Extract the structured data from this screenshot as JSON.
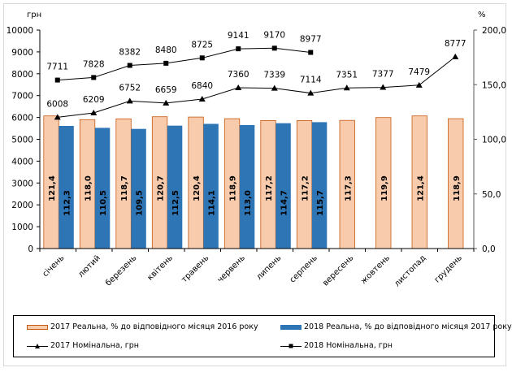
{
  "chart_data": {
    "type": "bar",
    "title": "",
    "left_axis": {
      "label": "грн",
      "range": [
        0,
        10000
      ],
      "ticks": [
        "0",
        "1000",
        "2000",
        "3000",
        "4000",
        "5000",
        "6000",
        "7000",
        "8000",
        "9000",
        "10000"
      ],
      "tick_values": [
        0,
        1000,
        2000,
        3000,
        4000,
        5000,
        6000,
        7000,
        8000,
        9000,
        10000
      ]
    },
    "right_axis": {
      "label": "%",
      "range": [
        0,
        200
      ],
      "ticks": [
        "0,0",
        "50,0",
        "100,0",
        "150,0",
        "200,0"
      ],
      "tick_values": [
        0,
        50,
        100,
        150,
        200
      ]
    },
    "categories": [
      "січень",
      "лютий",
      "березень",
      "квітень",
      "травень",
      "червень",
      "липень",
      "серпень",
      "вересень",
      "жовтень",
      "листопад",
      "грудень"
    ],
    "series": [
      {
        "name": "2017 Реальна, % до відповідного місяця 2016 року",
        "type": "bar",
        "axis": "right",
        "color": "#f8cbad",
        "border": "#c55a11",
        "values": [
          121.4,
          118.0,
          118.7,
          120.7,
          120.4,
          118.9,
          117.2,
          117.2,
          117.3,
          119.9,
          121.4,
          118.9
        ],
        "labels": [
          "121,4",
          "118,0",
          "118,7",
          "120,7",
          "120,4",
          "118,9",
          "117,2",
          "117,2",
          "117,3",
          "119,9",
          "121,4",
          "118,9"
        ]
      },
      {
        "name": "2018 Реальна, % до відповідного місяця 2017 року",
        "type": "bar",
        "axis": "right",
        "color": "#2e75b6",
        "border": "#1f4e79",
        "values": [
          112.3,
          110.5,
          109.5,
          112.5,
          114.1,
          113.0,
          114.7,
          115.7,
          null,
          null,
          null,
          null
        ],
        "labels": [
          "112,3",
          "110,5",
          "109,5",
          "112,5",
          "114,1",
          "113,0",
          "114,7",
          "115,7",
          null,
          null,
          null,
          null
        ]
      },
      {
        "name": "2017 Номінальна, грн",
        "type": "line",
        "axis": "left",
        "marker": "triangle",
        "color": "#000000",
        "values": [
          6008,
          6209,
          6752,
          6659,
          6840,
          7360,
          7339,
          7114,
          7351,
          7377,
          7479,
          8777
        ],
        "labels": [
          "6008",
          "6209",
          "6752",
          "6659",
          "6840",
          "7360",
          "7339",
          "7114",
          "7351",
          "7377",
          "7479",
          "8777"
        ]
      },
      {
        "name": "2018 Номінальна, грн",
        "type": "line",
        "axis": "left",
        "marker": "square",
        "color": "#000000",
        "values": [
          7711,
          7828,
          8382,
          8480,
          8725,
          9141,
          9170,
          8977,
          null,
          null,
          null,
          null
        ],
        "labels": [
          "7711",
          "7828",
          "8382",
          "8480",
          "8725",
          "9141",
          "9170",
          "8977",
          null,
          null,
          null,
          null
        ]
      }
    ],
    "legend_position": "bottom",
    "grid": false
  },
  "legend": {
    "bar2017": "2017 Реальна, % до відповідного місяця 2016 року",
    "bar2018": "2018 Реальна, % до відповідного місяця 2017 року",
    "line2017": "2017 Номінальна, грн",
    "line2018": "2018 Номінальна, грн"
  }
}
